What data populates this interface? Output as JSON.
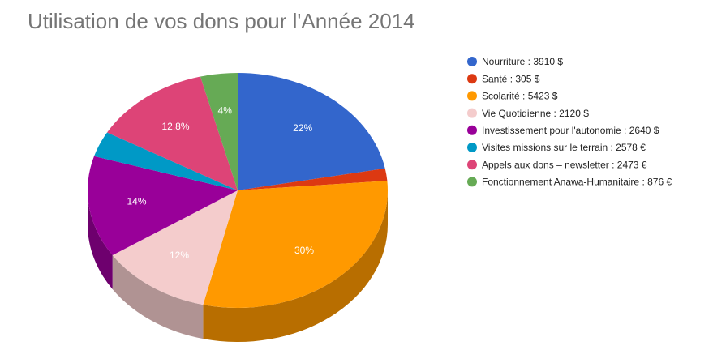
{
  "chart_data": {
    "type": "pie3d",
    "title": "Utilisation de vos dons pour l'Année 2014",
    "categories": [
      "Nourriture : 3910 $",
      "Santé : 305 $",
      "Scolarité : 5423 $",
      "Vie Quotidienne : 2120 $",
      "Investissement pour l'autonomie : 2640 $",
      "Visites missions sur le terrain : 2578 €",
      "Appels aux dons – newsletter : 2473 €",
      "Fonctionnement Anawa-Humanitaire : 876 €"
    ],
    "values": [
      22,
      1.7,
      30,
      12,
      14,
      3.5,
      12.8,
      4
    ],
    "value_labels": [
      "22%",
      null,
      "30%",
      "12%",
      "14%",
      null,
      "12.8%",
      "4%"
    ],
    "colors": [
      "#3366cc",
      "#dc3912",
      "#ff9900",
      "#f4cccc",
      "#990099",
      "#0099c6",
      "#dd4477",
      "#66aa55"
    ],
    "legend": "right"
  }
}
